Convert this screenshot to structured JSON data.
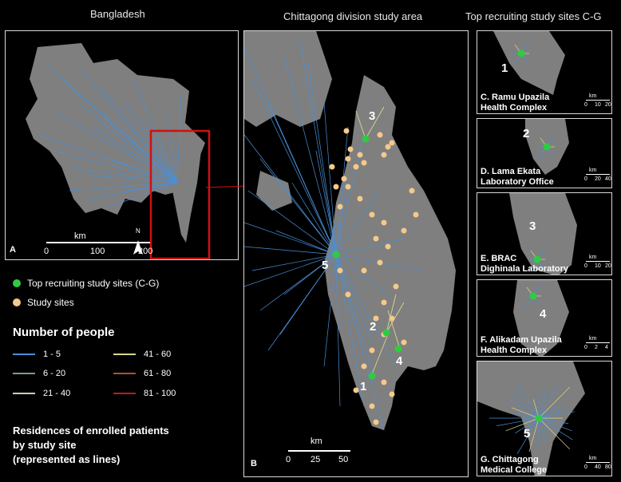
{
  "titles": {
    "panel_a": "Bangladesh",
    "panel_b": "Chittagong division study area",
    "panels_cg": "Top recruiting study sites C-G"
  },
  "panel_labels": {
    "a": "A",
    "b": "B"
  },
  "scale_a": {
    "unit": "km",
    "ticks": [
      "0",
      "100",
      "200"
    ]
  },
  "scale_b": {
    "unit": "km",
    "ticks": [
      "0",
      "25",
      "50"
    ]
  },
  "north": "N",
  "site_numbers": {
    "s1": "1",
    "s2": "2",
    "s3": "3",
    "s4": "4",
    "s5": "5"
  },
  "legend": {
    "top_sites": "Top recruiting study sites (C-G)",
    "study_sites": "Study sites",
    "heading": "Number of people",
    "ranges": [
      {
        "label": "1 - 5",
        "color": "#4a90d9"
      },
      {
        "label": "6 - 20",
        "color": "#7a9a9a"
      },
      {
        "label": "21 - 40",
        "color": "#c8d0b0"
      },
      {
        "label": "41 - 60",
        "color": "#d8d890"
      },
      {
        "label": "61 - 80",
        "color": "#b05030"
      },
      {
        "label": "81 - 100",
        "color": "#c81818"
      }
    ],
    "footer_line1": "Residences of enrolled patients",
    "footer_line2": "by study site",
    "footer_line3": "(represented as lines)"
  },
  "insets": [
    {
      "line1": "C. Ramu Upazila",
      "line2": "Health Complex",
      "site": "1",
      "unit": "km",
      "ticks": [
        "0",
        "10",
        "20"
      ]
    },
    {
      "line1": "D. Lama Ekata",
      "line2": "Laboratory Office",
      "site": "2",
      "unit": "km",
      "ticks": [
        "0",
        "20",
        "40"
      ]
    },
    {
      "line1": "E. BRAC",
      "line2": "Dighinala Laboratory",
      "site": "3",
      "unit": "km",
      "ticks": [
        "0",
        "10",
        "20"
      ]
    },
    {
      "line1": "F. Alikadam Upazila",
      "line2": "Health Complex",
      "site": "4",
      "unit": "km",
      "ticks": [
        "0",
        "2",
        "4"
      ]
    },
    {
      "line1": "G. Chittagong",
      "line2": "Medical College",
      "site": "5",
      "unit": "km",
      "ticks": [
        "0",
        "40",
        "80"
      ]
    }
  ],
  "colors": {
    "land": "#7f7f7f",
    "line": "#4a90d9",
    "top_site": "#2ecc40",
    "study_site": "#f5c98a",
    "highlight": "#d01010"
  }
}
